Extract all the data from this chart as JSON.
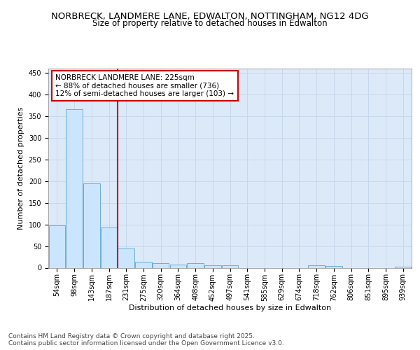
{
  "title_line1": "NORBRECK, LANDMERE LANE, EDWALTON, NOTTINGHAM, NG12 4DG",
  "title_line2": "Size of property relative to detached houses in Edwalton",
  "xlabel": "Distribution of detached houses by size in Edwalton",
  "ylabel": "Number of detached properties",
  "categories": [
    "54sqm",
    "98sqm",
    "143sqm",
    "187sqm",
    "231sqm",
    "275sqm",
    "320sqm",
    "364sqm",
    "408sqm",
    "452sqm",
    "497sqm",
    "541sqm",
    "585sqm",
    "629sqm",
    "674sqm",
    "718sqm",
    "762sqm",
    "806sqm",
    "851sqm",
    "895sqm",
    "939sqm"
  ],
  "values": [
    98,
    365,
    195,
    93,
    45,
    14,
    10,
    8,
    10,
    6,
    6,
    0,
    0,
    0,
    0,
    5,
    4,
    0,
    0,
    0,
    3
  ],
  "bar_color": "#cce5ff",
  "bar_edge_color": "#6baed6",
  "vline_pos": 3.5,
  "vline_color": "#cc0000",
  "annotation_text": "NORBRECK LANDMERE LANE: 225sqm\n← 88% of detached houses are smaller (736)\n12% of semi-detached houses are larger (103) →",
  "annotation_box_color": "#ffffff",
  "annotation_box_edge": "#cc0000",
  "ylim": [
    0,
    460
  ],
  "yticks": [
    0,
    50,
    100,
    150,
    200,
    250,
    300,
    350,
    400,
    450
  ],
  "grid_color": "#c8d8ec",
  "bg_color": "#dce9f8",
  "fig_bg_color": "#ffffff",
  "footer_text": "Contains HM Land Registry data © Crown copyright and database right 2025.\nContains public sector information licensed under the Open Government Licence v3.0.",
  "title_fontsize": 9.5,
  "subtitle_fontsize": 8.5,
  "axis_label_fontsize": 8,
  "tick_fontsize": 7,
  "annotation_fontsize": 7.5,
  "footer_fontsize": 6.5
}
